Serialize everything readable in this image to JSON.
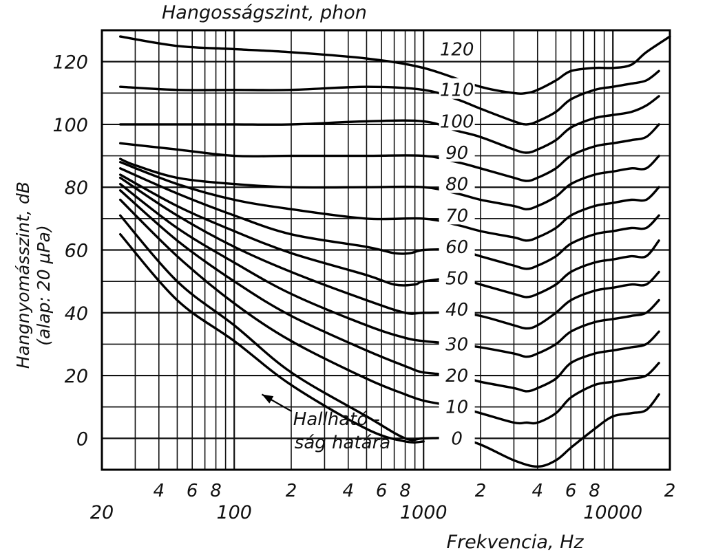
{
  "chart_data": {
    "type": "line",
    "title": "Hangosságszint, phon",
    "xlabel": "Frekvencia, Hz",
    "ylabel_line1": "Hangnyomásszint, dB",
    "ylabel_line2": "(alap: 20 µPa)",
    "x_scale": "log",
    "xlim": [
      20,
      20000
    ],
    "ylim": [
      -10,
      130
    ],
    "grid": true,
    "y_ticks": [
      0,
      20,
      40,
      60,
      80,
      100,
      120
    ],
    "x_ticks_major": [
      {
        "value": 20,
        "label": "20"
      },
      {
        "value": 100,
        "label": "100"
      },
      {
        "value": 1000,
        "label": "1000"
      },
      {
        "value": 10000,
        "label": "10000"
      }
    ],
    "x_ticks_minor": [
      {
        "value": 40,
        "label": "4"
      },
      {
        "value": 60,
        "label": "6"
      },
      {
        "value": 80,
        "label": "8"
      },
      {
        "value": 200,
        "label": "2"
      },
      {
        "value": 400,
        "label": "4"
      },
      {
        "value": 600,
        "label": "6"
      },
      {
        "value": 800,
        "label": "8"
      },
      {
        "value": 2000,
        "label": "2"
      },
      {
        "value": 4000,
        "label": "4"
      },
      {
        "value": 6000,
        "label": "6"
      },
      {
        "value": 8000,
        "label": "8"
      },
      {
        "value": 20000,
        "label": "2"
      }
    ],
    "annotation": {
      "line1": "Hallható -",
      "line2": "ság határa",
      "arrow_to": [
        140,
        14
      ],
      "text_at": [
        400,
        2
      ]
    },
    "series": [
      {
        "name": "120",
        "label_at": [
          1500,
          124
        ],
        "points": [
          [
            25,
            128
          ],
          [
            50,
            125
          ],
          [
            100,
            124
          ],
          [
            200,
            123
          ],
          [
            500,
            121
          ],
          [
            1000,
            118
          ],
          [
            2000,
            112
          ],
          [
            3000,
            110
          ],
          [
            3500,
            110
          ],
          [
            4000,
            111
          ],
          [
            5000,
            114
          ],
          [
            6000,
            117
          ],
          [
            8000,
            118
          ],
          [
            10000,
            118
          ],
          [
            12500,
            119
          ],
          [
            15000,
            123
          ],
          [
            20000,
            128
          ]
        ]
      },
      {
        "name": "110",
        "label_at": [
          1500,
          111
        ],
        "points": [
          [
            25,
            112
          ],
          [
            50,
            111
          ],
          [
            100,
            111
          ],
          [
            200,
            111
          ],
          [
            500,
            112
          ],
          [
            1000,
            111
          ],
          [
            1500,
            108
          ],
          [
            2000,
            105
          ],
          [
            3000,
            101
          ],
          [
            3500,
            100
          ],
          [
            4000,
            101
          ],
          [
            5000,
            104
          ],
          [
            6000,
            108
          ],
          [
            8000,
            111
          ],
          [
            10000,
            112
          ],
          [
            12500,
            113
          ],
          [
            15000,
            114
          ],
          [
            17500,
            117
          ]
        ]
      },
      {
        "name": "100",
        "label_at": [
          1500,
          101
        ],
        "points": [
          [
            25,
            100
          ],
          [
            50,
            100
          ],
          [
            100,
            100
          ],
          [
            200,
            100
          ],
          [
            500,
            101
          ],
          [
            1000,
            101
          ],
          [
            1500,
            98
          ],
          [
            2000,
            96
          ],
          [
            3000,
            92
          ],
          [
            3500,
            91
          ],
          [
            4000,
            92
          ],
          [
            5000,
            95
          ],
          [
            6000,
            99
          ],
          [
            8000,
            102
          ],
          [
            10000,
            103
          ],
          [
            12500,
            104
          ],
          [
            15000,
            106
          ],
          [
            17500,
            109
          ]
        ]
      },
      {
        "name": "90",
        "label_at": [
          1500,
          91
        ],
        "points": [
          [
            25,
            94
          ],
          [
            50,
            92
          ],
          [
            100,
            90
          ],
          [
            200,
            90
          ],
          [
            500,
            90
          ],
          [
            1000,
            90
          ],
          [
            1500,
            88
          ],
          [
            2000,
            86
          ],
          [
            3000,
            83
          ],
          [
            3500,
            82
          ],
          [
            4000,
            83
          ],
          [
            5000,
            86
          ],
          [
            6000,
            90
          ],
          [
            8000,
            93
          ],
          [
            10000,
            94
          ],
          [
            12500,
            95
          ],
          [
            15000,
            96
          ],
          [
            17500,
            100
          ]
        ]
      },
      {
        "name": "80",
        "label_at": [
          1500,
          81
        ],
        "points": [
          [
            25,
            89
          ],
          [
            30,
            87
          ],
          [
            50,
            83
          ],
          [
            100,
            81
          ],
          [
            200,
            80
          ],
          [
            500,
            80
          ],
          [
            1000,
            80
          ],
          [
            1500,
            78
          ],
          [
            2000,
            76
          ],
          [
            3000,
            74
          ],
          [
            3500,
            73
          ],
          [
            4000,
            74
          ],
          [
            5000,
            77
          ],
          [
            6000,
            81
          ],
          [
            8000,
            84
          ],
          [
            10000,
            85
          ],
          [
            12500,
            86
          ],
          [
            15000,
            86
          ],
          [
            17500,
            90
          ]
        ]
      },
      {
        "name": "70",
        "label_at": [
          1500,
          71
        ],
        "points": [
          [
            25,
            88
          ],
          [
            50,
            81
          ],
          [
            100,
            76
          ],
          [
            200,
            73
          ],
          [
            500,
            70
          ],
          [
            1000,
            70
          ],
          [
            1500,
            68
          ],
          [
            2000,
            66
          ],
          [
            3000,
            64
          ],
          [
            3500,
            63
          ],
          [
            4000,
            64
          ],
          [
            5000,
            67
          ],
          [
            6000,
            71
          ],
          [
            8000,
            74
          ],
          [
            10000,
            75
          ],
          [
            12500,
            76
          ],
          [
            15000,
            76
          ],
          [
            17500,
            80
          ]
        ]
      },
      {
        "name": "60",
        "label_at": [
          1500,
          61
        ],
        "points": [
          [
            25,
            86
          ],
          [
            50,
            78
          ],
          [
            100,
            71
          ],
          [
            200,
            65
          ],
          [
            500,
            61
          ],
          [
            700,
            59
          ],
          [
            850,
            59
          ],
          [
            1000,
            60
          ],
          [
            1500,
            60
          ],
          [
            2000,
            58
          ],
          [
            3000,
            55
          ],
          [
            3500,
            54
          ],
          [
            4000,
            55
          ],
          [
            5000,
            58
          ],
          [
            6000,
            62
          ],
          [
            8000,
            65
          ],
          [
            10000,
            66
          ],
          [
            12500,
            67
          ],
          [
            15000,
            67
          ],
          [
            17500,
            71
          ]
        ]
      },
      {
        "name": "50",
        "label_at": [
          1500,
          51
        ],
        "points": [
          [
            25,
            84
          ],
          [
            50,
            74
          ],
          [
            100,
            66
          ],
          [
            200,
            59
          ],
          [
            500,
            52
          ],
          [
            700,
            49
          ],
          [
            900,
            49
          ],
          [
            1000,
            50
          ],
          [
            1500,
            51
          ],
          [
            2000,
            49
          ],
          [
            3000,
            46
          ],
          [
            3500,
            45
          ],
          [
            4000,
            46
          ],
          [
            5000,
            49
          ],
          [
            6000,
            53
          ],
          [
            8000,
            56
          ],
          [
            10000,
            57
          ],
          [
            12500,
            58
          ],
          [
            15000,
            58
          ],
          [
            17500,
            63
          ]
        ]
      },
      {
        "name": "40",
        "label_at": [
          1500,
          41
        ],
        "points": [
          [
            25,
            83
          ],
          [
            50,
            71
          ],
          [
            100,
            61
          ],
          [
            200,
            53
          ],
          [
            500,
            44
          ],
          [
            800,
            40
          ],
          [
            1000,
            40
          ],
          [
            1500,
            40
          ],
          [
            2000,
            39
          ],
          [
            3000,
            36
          ],
          [
            3500,
            35
          ],
          [
            4000,
            36
          ],
          [
            5000,
            40
          ],
          [
            6000,
            44
          ],
          [
            8000,
            47
          ],
          [
            10000,
            48
          ],
          [
            12500,
            49
          ],
          [
            15000,
            49
          ],
          [
            17500,
            53
          ]
        ]
      },
      {
        "name": "30",
        "label_at": [
          1500,
          30
        ],
        "points": [
          [
            25,
            81
          ],
          [
            50,
            67
          ],
          [
            100,
            56
          ],
          [
            200,
            46
          ],
          [
            500,
            36
          ],
          [
            800,
            32
          ],
          [
            1000,
            31
          ],
          [
            1500,
            30
          ],
          [
            2000,
            29
          ],
          [
            3000,
            27
          ],
          [
            3500,
            26
          ],
          [
            4000,
            27
          ],
          [
            5000,
            30
          ],
          [
            6000,
            34
          ],
          [
            8000,
            37
          ],
          [
            10000,
            38
          ],
          [
            12500,
            39
          ],
          [
            15000,
            40
          ],
          [
            17500,
            44
          ]
        ]
      },
      {
        "name": "20",
        "label_at": [
          1500,
          20
        ],
        "points": [
          [
            25,
            79
          ],
          [
            50,
            63
          ],
          [
            100,
            50
          ],
          [
            200,
            39
          ],
          [
            500,
            28
          ],
          [
            800,
            23
          ],
          [
            1000,
            21
          ],
          [
            1500,
            20
          ],
          [
            2000,
            18
          ],
          [
            3000,
            16
          ],
          [
            3500,
            15
          ],
          [
            4000,
            16
          ],
          [
            5000,
            19
          ],
          [
            6000,
            24
          ],
          [
            8000,
            27
          ],
          [
            10000,
            28
          ],
          [
            12500,
            29
          ],
          [
            15000,
            30
          ],
          [
            17500,
            34
          ]
        ]
      },
      {
        "name": "10",
        "label_at": [
          1500,
          10
        ],
        "points": [
          [
            25,
            76
          ],
          [
            50,
            58
          ],
          [
            100,
            43
          ],
          [
            200,
            31
          ],
          [
            500,
            19
          ],
          [
            800,
            14
          ],
          [
            1000,
            12
          ],
          [
            1500,
            10
          ],
          [
            2000,
            8
          ],
          [
            3000,
            5
          ],
          [
            3500,
            5
          ],
          [
            4000,
            5
          ],
          [
            5000,
            8
          ],
          [
            6000,
            13
          ],
          [
            8000,
            17
          ],
          [
            10000,
            18
          ],
          [
            12500,
            19
          ],
          [
            15000,
            20
          ],
          [
            17500,
            24
          ]
        ]
      },
      {
        "name": "0",
        "label_at": [
          1500,
          0
        ],
        "points": [
          [
            25,
            71
          ],
          [
            50,
            50
          ],
          [
            100,
            36
          ],
          [
            200,
            21
          ],
          [
            500,
            7
          ],
          [
            800,
            0
          ],
          [
            1000,
            0
          ],
          [
            1500,
            0
          ],
          [
            2000,
            -2
          ],
          [
            3000,
            -7
          ],
          [
            4000,
            -9
          ],
          [
            5000,
            -7
          ],
          [
            6000,
            -3
          ],
          [
            8000,
            3
          ],
          [
            10000,
            7
          ],
          [
            12500,
            8
          ],
          [
            15000,
            9
          ],
          [
            17500,
            14
          ]
        ]
      },
      {
        "name": "",
        "points": [
          [
            25,
            65
          ],
          [
            50,
            44
          ],
          [
            100,
            31
          ],
          [
            200,
            17
          ],
          [
            500,
            3
          ],
          [
            800,
            -1
          ],
          [
            1000,
            -1
          ]
        ]
      }
    ]
  }
}
